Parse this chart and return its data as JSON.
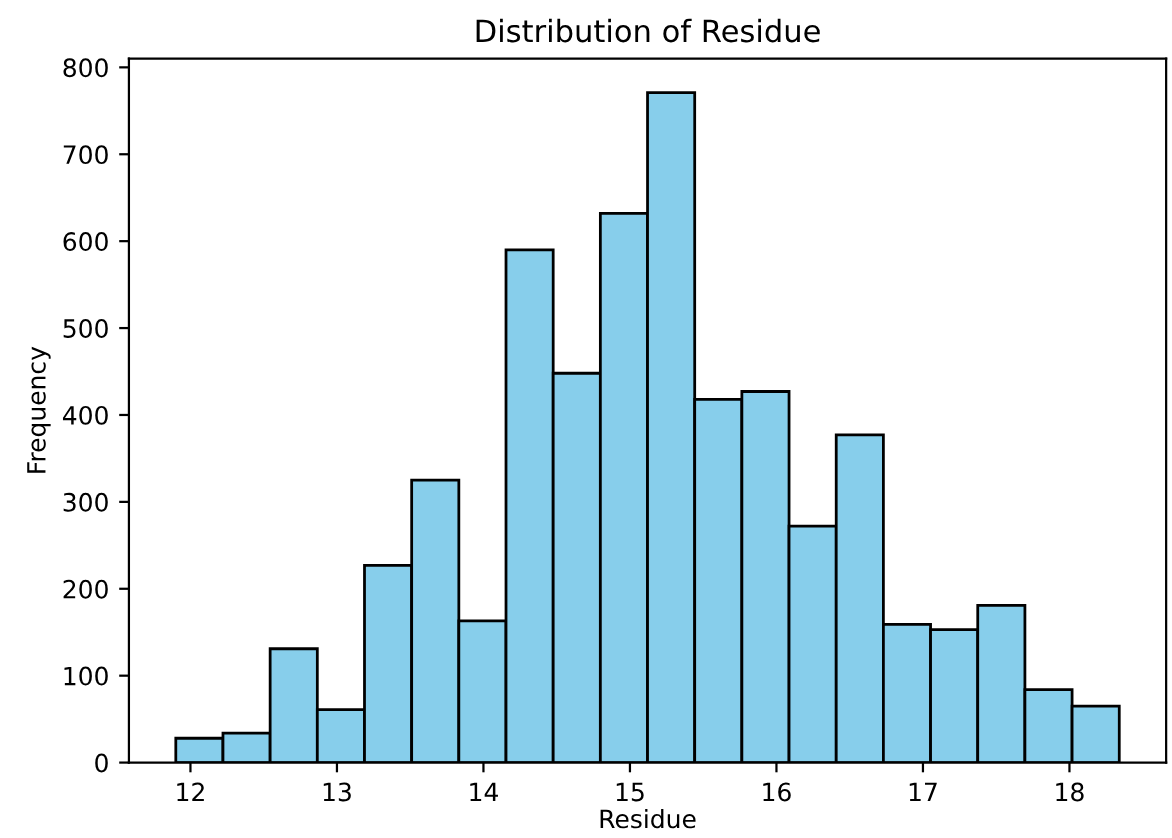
{
  "chart_data": {
    "type": "histogram",
    "title": "Distribution of Residue",
    "xlabel": "Residue",
    "ylabel": "Frequency",
    "bins": [
      11.9,
      12.222,
      12.544,
      12.866,
      13.188,
      13.51,
      13.832,
      14.154,
      14.476,
      14.798,
      15.12,
      15.442,
      15.764,
      16.086,
      16.408,
      16.73,
      17.052,
      17.374,
      17.696,
      18.018,
      18.34
    ],
    "values": [
      28,
      34,
      131,
      61,
      227,
      325,
      163,
      590,
      448,
      632,
      771,
      418,
      427,
      272,
      377,
      159,
      153,
      181,
      84,
      65
    ],
    "color": "#87ceeb",
    "xlim": [
      11.58,
      18.66
    ],
    "ylim": [
      0,
      810
    ],
    "xticks": [
      12,
      13,
      14,
      15,
      16,
      17,
      18
    ],
    "yticks": [
      0,
      100,
      200,
      300,
      400,
      500,
      600,
      700,
      800
    ],
    "grid": false,
    "legend": false
  }
}
